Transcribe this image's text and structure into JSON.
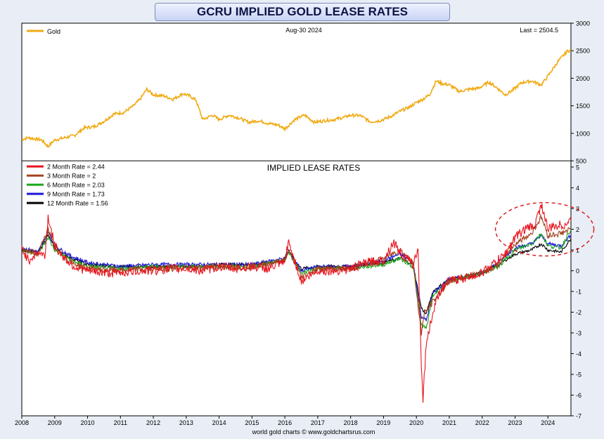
{
  "title": "GCRU IMPLIED GOLD LEASE RATES",
  "top_panel": {
    "legend": "Gold",
    "date": "Aug-30  2024",
    "last": "Last = 2504.5"
  },
  "bottom_panel": {
    "title": "IMPLIED LEASE RATES",
    "legend": [
      "2 Month Rate  = 2.44",
      "3 Month Rate  = 2",
      "6 Month Rate  = 2.03",
      "9 Month Rate  = 1.73",
      "12 Month Rate  = 1.56"
    ]
  },
  "footer": "world gold charts © www.goldchartsrus.com",
  "colors": {
    "gold": "#f0aa14",
    "rate2m": "#e8141e",
    "rate3m": "#a0421e",
    "rate6m": "#1aa51a",
    "rate9m": "#1a14d8",
    "rate12m": "#000000",
    "highlight": "#d81818",
    "page_bg": "#e9eef6",
    "title_text": "#0d1445"
  },
  "chart_data": [
    {
      "type": "line",
      "title": "",
      "x_ticks": [
        "2008",
        "2009",
        "2010",
        "2011",
        "2012",
        "2013",
        "2014",
        "2015",
        "2016",
        "2017",
        "2018",
        "2019",
        "2020",
        "2021",
        "2022",
        "2023",
        "2024"
      ],
      "y_ticks": [
        500,
        1000,
        1500,
        2000,
        2500,
        3000
      ],
      "ylim": [
        500,
        3000
      ],
      "xlim": [
        2008.0,
        2024.7
      ],
      "series": [
        {
          "name": "Gold",
          "x": [
            2008.0,
            2008.2,
            2008.4,
            2008.6,
            2008.8,
            2009.0,
            2009.3,
            2009.6,
            2009.9,
            2010.2,
            2010.5,
            2010.8,
            2011.1,
            2011.4,
            2011.6,
            2011.8,
            2012.0,
            2012.3,
            2012.6,
            2012.9,
            2013.1,
            2013.3,
            2013.5,
            2013.8,
            2014.0,
            2014.3,
            2014.6,
            2014.9,
            2015.2,
            2015.5,
            2015.8,
            2016.0,
            2016.3,
            2016.6,
            2016.9,
            2017.2,
            2017.5,
            2017.8,
            2018.0,
            2018.3,
            2018.6,
            2018.9,
            2019.2,
            2019.5,
            2019.8,
            2020.0,
            2020.2,
            2020.4,
            2020.6,
            2020.8,
            2021.0,
            2021.3,
            2021.6,
            2021.9,
            2022.2,
            2022.4,
            2022.7,
            2022.9,
            2023.2,
            2023.5,
            2023.8,
            2024.0,
            2024.3,
            2024.6,
            2024.7
          ],
          "values": [
            890,
            920,
            900,
            880,
            760,
            880,
            920,
            960,
            1100,
            1120,
            1220,
            1350,
            1380,
            1500,
            1620,
            1800,
            1700,
            1680,
            1620,
            1720,
            1680,
            1600,
            1250,
            1330,
            1250,
            1330,
            1280,
            1200,
            1230,
            1180,
            1150,
            1080,
            1250,
            1330,
            1200,
            1230,
            1250,
            1290,
            1330,
            1320,
            1210,
            1230,
            1300,
            1400,
            1480,
            1560,
            1620,
            1700,
            1950,
            1900,
            1880,
            1760,
            1800,
            1820,
            1930,
            1850,
            1700,
            1770,
            1920,
            1950,
            1880,
            2040,
            2300,
            2500,
            2504.5
          ]
        }
      ]
    },
    {
      "type": "line",
      "title": "IMPLIED LEASE RATES",
      "x_ticks": [
        "2008",
        "2009",
        "2010",
        "2011",
        "2012",
        "2013",
        "2014",
        "2015",
        "2016",
        "2017",
        "2018",
        "2019",
        "2020",
        "2021",
        "2022",
        "2023",
        "2024"
      ],
      "y_ticks": [
        -7,
        -6,
        -5,
        -4,
        -3,
        -2,
        -1,
        0,
        1,
        2,
        3,
        4,
        5
      ],
      "ylim": [
        -7,
        5.3
      ],
      "xlim": [
        2008.0,
        2024.7
      ],
      "annotations": [
        {
          "type": "dashed-ellipse",
          "x_center": 2023.9,
          "y_center": 2.0,
          "note": "highlight"
        }
      ],
      "series": [
        {
          "name": "2 Month Rate",
          "last": 2.44,
          "x": [
            2008.0,
            2008.2,
            2008.5,
            2008.7,
            2008.8,
            2009.0,
            2009.3,
            2009.6,
            2010.0,
            2010.5,
            2011.0,
            2011.5,
            2012.0,
            2012.5,
            2013.0,
            2013.5,
            2014.0,
            2014.5,
            2015.0,
            2015.5,
            2016.0,
            2016.1,
            2016.3,
            2016.5,
            2016.7,
            2017.0,
            2017.5,
            2018.0,
            2018.5,
            2019.0,
            2019.3,
            2019.6,
            2019.9,
            2020.05,
            2020.15,
            2020.2,
            2020.3,
            2020.5,
            2020.7,
            2021.0,
            2021.3,
            2021.6,
            2022.0,
            2022.4,
            2022.7,
            2023.0,
            2023.3,
            2023.6,
            2023.8,
            2024.0,
            2024.3,
            2024.5,
            2024.7
          ],
          "values": [
            1.1,
            0.5,
            0.9,
            0.7,
            2.6,
            1.2,
            0.6,
            0.2,
            0.0,
            -0.1,
            -0.1,
            0.0,
            0.0,
            0.1,
            0.1,
            0.0,
            0.2,
            0.1,
            0.2,
            0.1,
            0.4,
            1.4,
            0.5,
            -0.5,
            -0.3,
            0.0,
            0.0,
            0.1,
            0.4,
            0.5,
            1.4,
            0.7,
            0.3,
            1.0,
            -4.5,
            -6.2,
            -3.5,
            -2.0,
            -1.0,
            -0.5,
            -0.4,
            -0.3,
            -0.1,
            0.4,
            0.8,
            1.6,
            2.0,
            2.2,
            3.2,
            2.0,
            2.2,
            2.2,
            2.44
          ]
        },
        {
          "name": "3 Month Rate",
          "last": 2,
          "x": [
            2008.0,
            2008.5,
            2008.8,
            2009.0,
            2009.5,
            2010.0,
            2011.0,
            2012.0,
            2013.0,
            2014.0,
            2015.0,
            2016.0,
            2016.1,
            2016.5,
            2017.0,
            2018.0,
            2019.0,
            2019.5,
            2019.9,
            2020.15,
            2020.25,
            2020.5,
            2021.0,
            2021.5,
            2022.0,
            2022.5,
            2023.0,
            2023.5,
            2023.8,
            2024.0,
            2024.4,
            2024.7
          ],
          "values": [
            1.0,
            0.8,
            2.0,
            1.1,
            0.4,
            0.1,
            0.0,
            0.1,
            0.1,
            0.2,
            0.2,
            0.5,
            1.0,
            -0.3,
            0.1,
            0.1,
            0.6,
            1.0,
            0.4,
            -3.0,
            -2.0,
            -1.5,
            -0.5,
            -0.3,
            -0.1,
            0.3,
            1.3,
            1.8,
            2.6,
            1.7,
            1.8,
            2.0
          ]
        },
        {
          "name": "6 Month Rate",
          "last": 2.03,
          "x": [
            2008.0,
            2008.5,
            2008.8,
            2009.0,
            2009.5,
            2010.0,
            2011.0,
            2012.0,
            2013.0,
            2014.0,
            2015.0,
            2016.0,
            2016.1,
            2016.5,
            2017.0,
            2018.0,
            2019.0,
            2019.5,
            2019.9,
            2020.15,
            2020.3,
            2020.5,
            2021.0,
            2021.5,
            2022.0,
            2022.5,
            2023.0,
            2023.5,
            2023.8,
            2024.0,
            2024.4,
            2024.7
          ],
          "values": [
            1.0,
            0.8,
            1.6,
            1.0,
            0.5,
            0.2,
            0.1,
            0.2,
            0.2,
            0.2,
            0.2,
            0.5,
            0.9,
            -0.1,
            0.1,
            0.1,
            0.3,
            0.6,
            0.2,
            -2.6,
            -2.8,
            -1.2,
            -0.5,
            -0.3,
            -0.1,
            0.2,
            1.0,
            1.3,
            1.8,
            1.2,
            1.1,
            2.03
          ]
        },
        {
          "name": "9 Month Rate",
          "last": 1.73,
          "x": [
            2008.0,
            2008.5,
            2008.8,
            2009.0,
            2009.5,
            2010.0,
            2011.0,
            2012.0,
            2013.0,
            2014.0,
            2015.0,
            2016.0,
            2016.1,
            2016.5,
            2017.0,
            2018.0,
            2019.0,
            2019.5,
            2019.9,
            2020.15,
            2020.3,
            2020.5,
            2021.0,
            2021.5,
            2022.0,
            2022.5,
            2023.0,
            2023.5,
            2023.8,
            2024.0,
            2024.4,
            2024.7
          ],
          "values": [
            1.1,
            0.9,
            1.9,
            1.2,
            0.7,
            0.4,
            0.2,
            0.3,
            0.3,
            0.3,
            0.3,
            0.6,
            1.0,
            0.0,
            0.2,
            0.2,
            0.5,
            0.8,
            0.4,
            -2.2,
            -2.4,
            -1.1,
            -0.4,
            -0.3,
            -0.1,
            0.4,
            1.1,
            1.3,
            1.7,
            1.3,
            1.2,
            1.73
          ]
        },
        {
          "name": "12 Month Rate",
          "last": 1.56,
          "x": [
            2008.0,
            2008.5,
            2008.8,
            2009.0,
            2009.5,
            2010.0,
            2011.0,
            2012.0,
            2013.0,
            2014.0,
            2015.0,
            2016.0,
            2016.1,
            2016.5,
            2017.0,
            2018.0,
            2019.0,
            2019.5,
            2019.9,
            2020.15,
            2020.3,
            2020.5,
            2021.0,
            2021.5,
            2022.0,
            2022.5,
            2023.0,
            2023.5,
            2023.8,
            2024.0,
            2024.4,
            2024.7
          ],
          "values": [
            1.0,
            0.9,
            1.7,
            1.1,
            0.6,
            0.3,
            0.2,
            0.2,
            0.2,
            0.3,
            0.3,
            0.5,
            0.9,
            0.1,
            0.2,
            0.2,
            0.4,
            0.6,
            0.3,
            -1.8,
            -2.1,
            -1.0,
            -0.4,
            -0.3,
            -0.1,
            0.3,
            0.8,
            1.0,
            1.3,
            1.0,
            0.9,
            1.56
          ]
        }
      ]
    }
  ]
}
